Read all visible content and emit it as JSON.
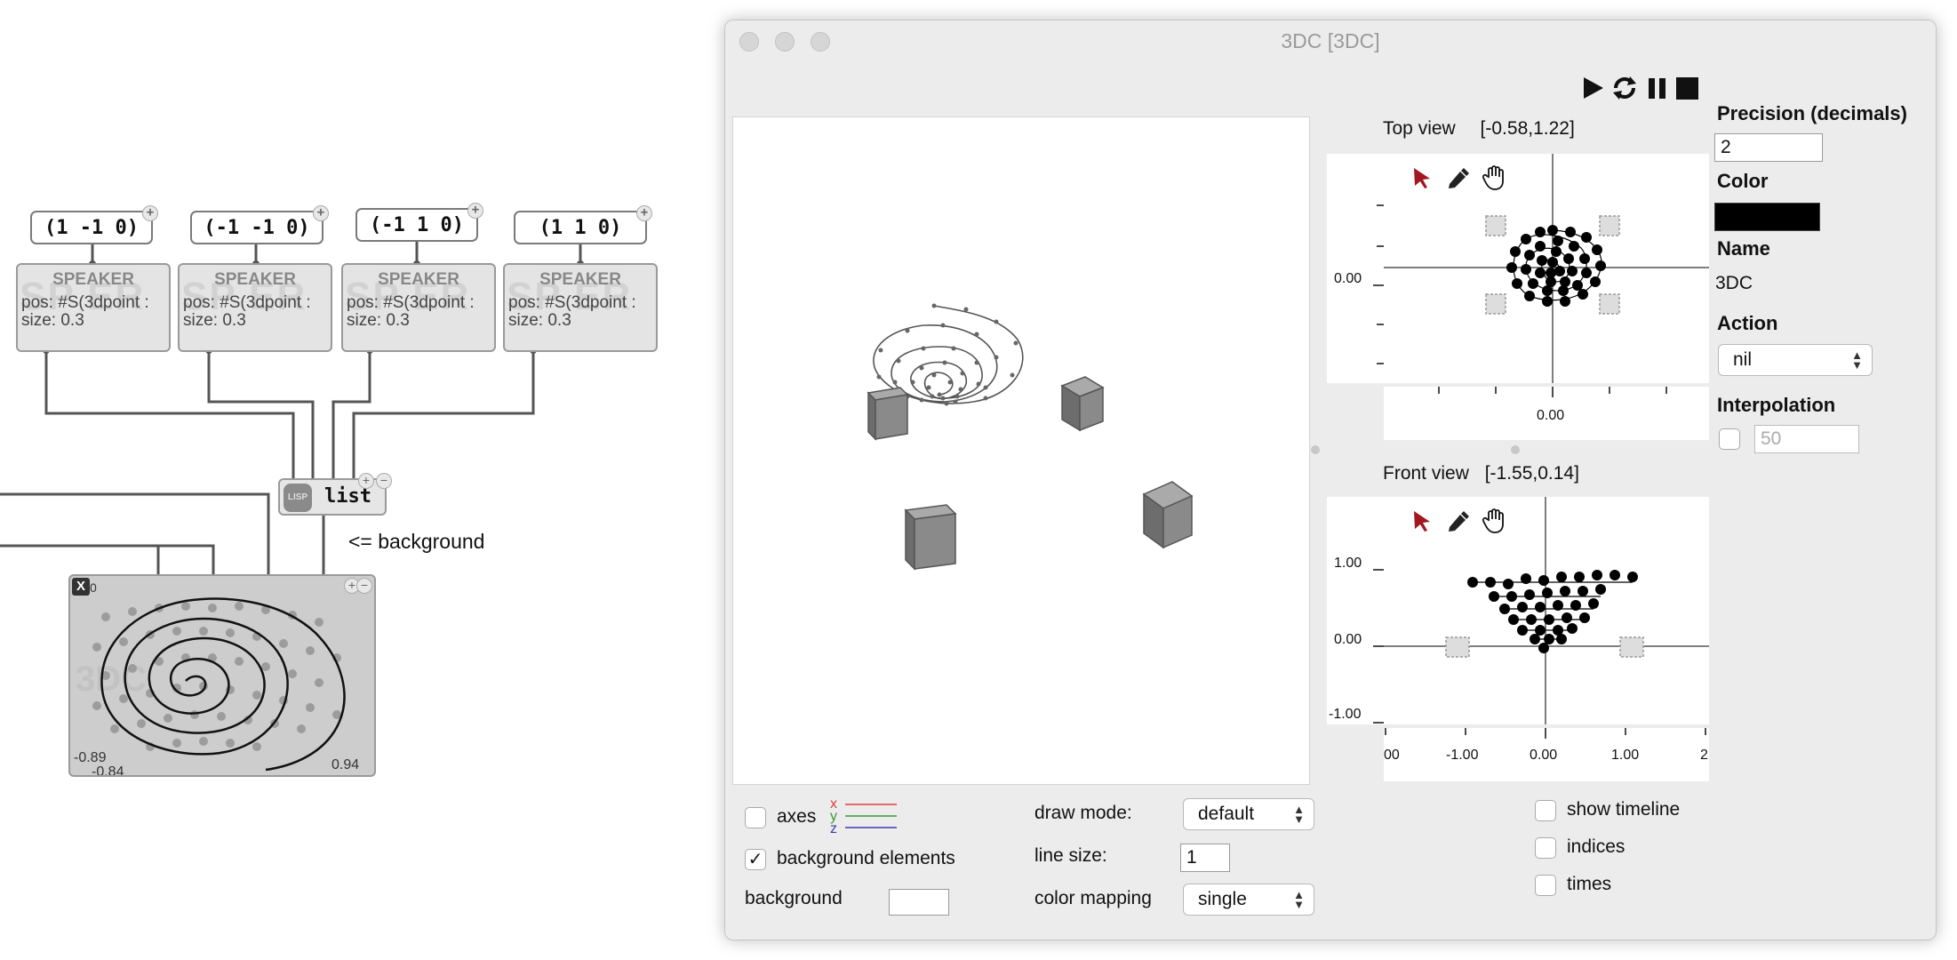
{
  "patch": {
    "points": [
      "(1 -1 0)",
      "(-1 -1 0)",
      "(-1 1 0)",
      "(1 1 0)"
    ],
    "speaker": {
      "title": "SPEAKER",
      "watermark": "SP ER",
      "pos": "pos: #S(3dpoint :",
      "size": "size: 0.3"
    },
    "list_obj": {
      "badge": "LISP",
      "label": "list"
    },
    "background_note": "<= background",
    "bpf": {
      "x_label": "X",
      "zero": "0",
      "watermark": "3DC",
      "ymin": "-0.89",
      "xmin": "-0.84",
      "xmax": "0.94"
    }
  },
  "window": {
    "title": "3DC [3DC]",
    "transport": {
      "play": "play-icon",
      "loop": "loop-icon",
      "pause": "pause-icon",
      "stop": "stop-icon"
    },
    "top_view": {
      "label": "Top view",
      "range": "[-0.58,1.22]",
      "y_tick": "0.00",
      "x_tick": "0.00"
    },
    "front_view": {
      "label": "Front view",
      "range": "[-1.55,0.14]",
      "y_ticks": [
        "1.00",
        "0.00",
        "-1.00"
      ],
      "x_ticks": [
        "00",
        "-1.00",
        "0.00",
        "1.00",
        "2"
      ]
    },
    "tools": {
      "arrow": "arrow-icon",
      "pen": "pen-icon",
      "hand": "hand-icon"
    },
    "bottom": {
      "axes_label": "axes",
      "axes_checked": false,
      "axis_x": "x",
      "axis_y": "y",
      "axis_z": "z",
      "axis_colors": {
        "x": "#d84040",
        "y": "#3a9a3a",
        "z": "#3a3ab0"
      },
      "bg_elements_label": "background elements",
      "bg_elements_checked": true,
      "background_label": "background",
      "draw_mode_label": "draw mode:",
      "draw_mode_value": "default",
      "line_size_label": "line size:",
      "line_size_value": "1",
      "color_mapping_label": "color mapping",
      "color_mapping_value": "single",
      "show_timeline_label": "show timeline",
      "indices_label": "indices",
      "times_label": "times"
    },
    "side": {
      "precision_label": "Precision (decimals)",
      "precision_value": "2",
      "color_label": "Color",
      "color_value": "#000000",
      "name_label": "Name",
      "name_value": "3DC",
      "action_label": "Action",
      "action_value": "nil",
      "interpolation_label": "Interpolation",
      "interpolation_value": "50",
      "interpolation_checked": false
    }
  }
}
